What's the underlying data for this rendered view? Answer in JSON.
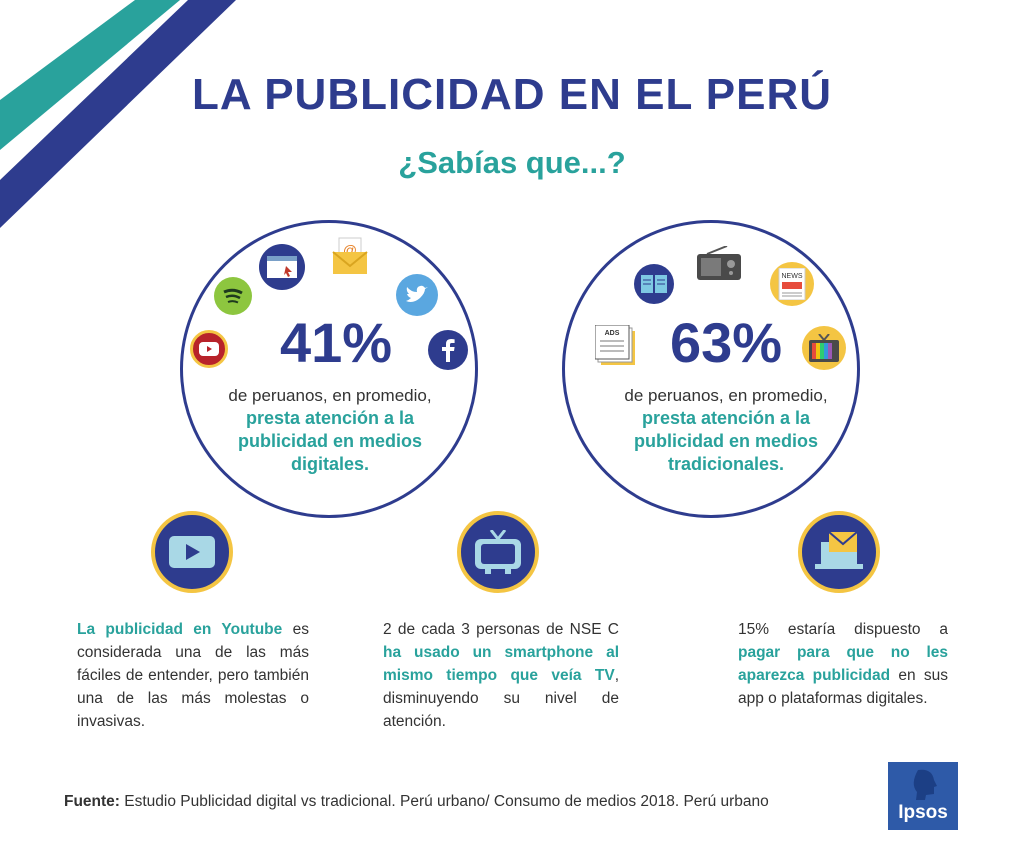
{
  "header": {
    "title": "LA PUBLICIDAD EN EL PERÚ",
    "subtitle": "¿Sabías que...?"
  },
  "digital": {
    "percent": "41%",
    "line1": "de peruanos, en promedio,",
    "highlight1": "presta atención a la",
    "highlight2": "publicidad en medios",
    "highlight3": "digitales."
  },
  "traditional": {
    "percent": "63%",
    "line1": "de peruanos, en promedio,",
    "highlight1": "presta atención a la",
    "highlight2": "publicidad en medios",
    "highlight3": "tradicionales.",
    "ads_label": "ADS",
    "news_label": "NEWS"
  },
  "notes": {
    "youtube": {
      "hl": "La publicidad en Youtube",
      "text": " es considerada una de las más fáciles de entender, pero también una de las más molestas o invasivas."
    },
    "tv": {
      "text1": "2 de cada 3 personas de NSE C ",
      "hl": "ha usado un smartphone al mismo tiempo que veía TV",
      "text2": ", disminuyendo su nivel de atención."
    },
    "pay": {
      "text1": "15% estaría dispuesto a ",
      "hl": "pagar para que no les aparezca publicidad",
      "text2": " en sus app o plataformas digitales."
    }
  },
  "footer": {
    "source_label": "Fuente:",
    "source_text": " Estudio Publicidad digital vs tradicional. Perú urbano/ Consumo de medios 2018. Perú urbano",
    "logo": "Ipsos"
  },
  "icons": [
    "youtube-icon",
    "spotify-icon",
    "browser-icon",
    "email-icon",
    "twitter-icon",
    "facebook-icon",
    "book-icon",
    "radio-icon",
    "newspaper-icon",
    "ads-document-icon",
    "tv-icon",
    "play-icon",
    "laptop-mail-icon"
  ],
  "colors": {
    "navy": "#2e3c8e",
    "teal": "#29a29c",
    "gold": "#f4c543"
  }
}
